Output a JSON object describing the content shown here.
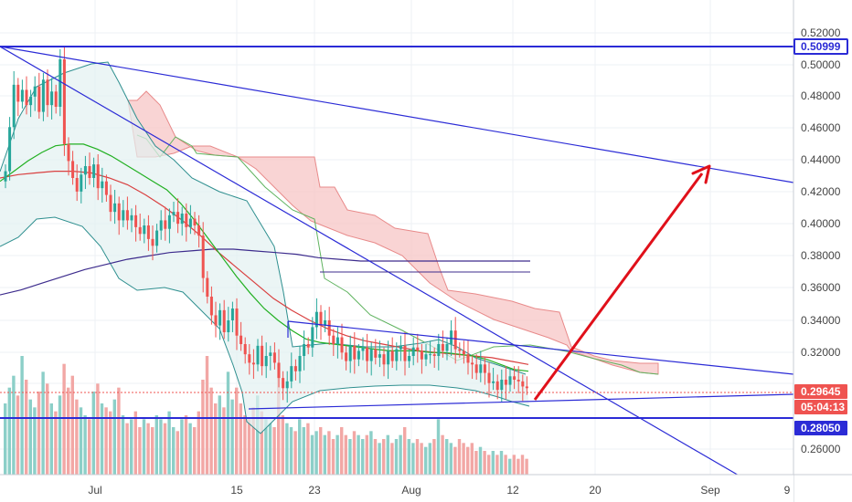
{
  "chart_data": {
    "type": "candlestick",
    "title": "",
    "xlabel": "",
    "ylabel": "",
    "ylim": [
      0.245,
      0.525
    ],
    "x_ticks": [
      "Jul",
      "15",
      "23",
      "Aug",
      "12",
      "20",
      "Sep",
      "9"
    ],
    "y_ticks": [
      "0.52000",
      "0.50000",
      "0.48000",
      "0.46000",
      "0.44000",
      "0.42000",
      "0.40000",
      "0.38000",
      "0.36000",
      "0.34000",
      "0.32000",
      "0.26000"
    ],
    "price_tags": [
      {
        "label": "0.50999",
        "value": 0.50999,
        "style": "outline"
      },
      {
        "label": "0.29645",
        "value": 0.29645,
        "style": "red"
      },
      {
        "label": "05:04:13",
        "value": 0.2918,
        "style": "red"
      },
      {
        "label": "0.28050",
        "value": 0.2805,
        "style": "blue"
      }
    ],
    "colors": {
      "up": "#26a69a",
      "down": "#ef5350",
      "trendline": "#2b2bd6",
      "arrow": "#e0101a",
      "kumo": "#f7c5c5",
      "bands": "#e9f3f3"
    },
    "candles_close": [
      0.424,
      0.45,
      0.475,
      0.465,
      0.472,
      0.463,
      0.468,
      0.474,
      0.459,
      0.478,
      0.463,
      0.471,
      0.462,
      0.49,
      0.44,
      0.43,
      0.42,
      0.412,
      0.422,
      0.427,
      0.42,
      0.428,
      0.414,
      0.418,
      0.41,
      0.4,
      0.405,
      0.395,
      0.401,
      0.395,
      0.398,
      0.391,
      0.387,
      0.392,
      0.384,
      0.38,
      0.389,
      0.395,
      0.39,
      0.398,
      0.4,
      0.393,
      0.399,
      0.391,
      0.396,
      0.392,
      0.386,
      0.361,
      0.35,
      0.339,
      0.333,
      0.342,
      0.329,
      0.336,
      0.343,
      0.327,
      0.322,
      0.316,
      0.311,
      0.31,
      0.321,
      0.309,
      0.315,
      0.317,
      0.311,
      0.302,
      0.296,
      0.3,
      0.309,
      0.306,
      0.315,
      0.322,
      0.32,
      0.332,
      0.341,
      0.333,
      0.336,
      0.327,
      0.322,
      0.326,
      0.317,
      0.312,
      0.321,
      0.313,
      0.318,
      0.32,
      0.312,
      0.319,
      0.314,
      0.316,
      0.31,
      0.318,
      0.312,
      0.319,
      0.321,
      0.312,
      0.315,
      0.32,
      0.318,
      0.313,
      0.316,
      0.316,
      0.315,
      0.322,
      0.318,
      0.322,
      0.33,
      0.319,
      0.318,
      0.316,
      0.311,
      0.31,
      0.305,
      0.31,
      0.305,
      0.299,
      0.3,
      0.295,
      0.301,
      0.298,
      0.303,
      0.301,
      0.3,
      0.297,
      0.296
    ],
    "volume": [
      18,
      22,
      25,
      20,
      30,
      24,
      19,
      17,
      21,
      26,
      23,
      18,
      16,
      20,
      28,
      22,
      25,
      19,
      17,
      15,
      14,
      21,
      23,
      18,
      17,
      16,
      19,
      22,
      15,
      13,
      14,
      16,
      12,
      14,
      13,
      12,
      15,
      14,
      13,
      16,
      12,
      11,
      14,
      15,
      13,
      12,
      16,
      24,
      30,
      22,
      18,
      20,
      17,
      26,
      19,
      22,
      18,
      15,
      14,
      17,
      20,
      16,
      14,
      13,
      12,
      28,
      15,
      13,
      12,
      11,
      14,
      12,
      13,
      10,
      11,
      12,
      10,
      11,
      9,
      10,
      12,
      10,
      9,
      11,
      10,
      9,
      10,
      11,
      9,
      8,
      9,
      10,
      8,
      9,
      10,
      12,
      9,
      8,
      9,
      8,
      7,
      8,
      9,
      14,
      10,
      9,
      8,
      7,
      9,
      8,
      7,
      8,
      6,
      7,
      6,
      5,
      6,
      5,
      6,
      5,
      4,
      5,
      4,
      5,
      4
    ],
    "ma_green": [
      0.418,
      0.424,
      0.43,
      0.435,
      0.439,
      0.44,
      0.44,
      0.437,
      0.433,
      0.428,
      0.423,
      0.418,
      0.413,
      0.405,
      0.395,
      0.384,
      0.373,
      0.362,
      0.352,
      0.343,
      0.336,
      0.33,
      0.325,
      0.323,
      0.322,
      0.321,
      0.32,
      0.319,
      0.318,
      0.318,
      0.318,
      0.317,
      0.317,
      0.316,
      0.315,
      0.313,
      0.31,
      0.307,
      0.306
    ],
    "ma_red": [
      0.42,
      0.422,
      0.423,
      0.424,
      0.424,
      0.423,
      0.42,
      0.416,
      0.41,
      0.403,
      0.395,
      0.386,
      0.376,
      0.367,
      0.358,
      0.349,
      0.342,
      0.336,
      0.331,
      0.327,
      0.324,
      0.322,
      0.32,
      0.318,
      0.317,
      0.316,
      0.315,
      0.314,
      0.312,
      0.31
    ],
    "ma_purple": [
      0.351,
      0.354,
      0.358,
      0.362,
      0.366,
      0.369,
      0.372,
      0.374,
      0.376,
      0.377,
      0.378,
      0.378,
      0.377,
      0.376,
      0.375,
      0.373,
      0.372,
      0.371,
      0.371,
      0.371,
      0.371,
      0.371,
      0.371,
      0.371,
      0.371,
      0.371
    ]
  }
}
